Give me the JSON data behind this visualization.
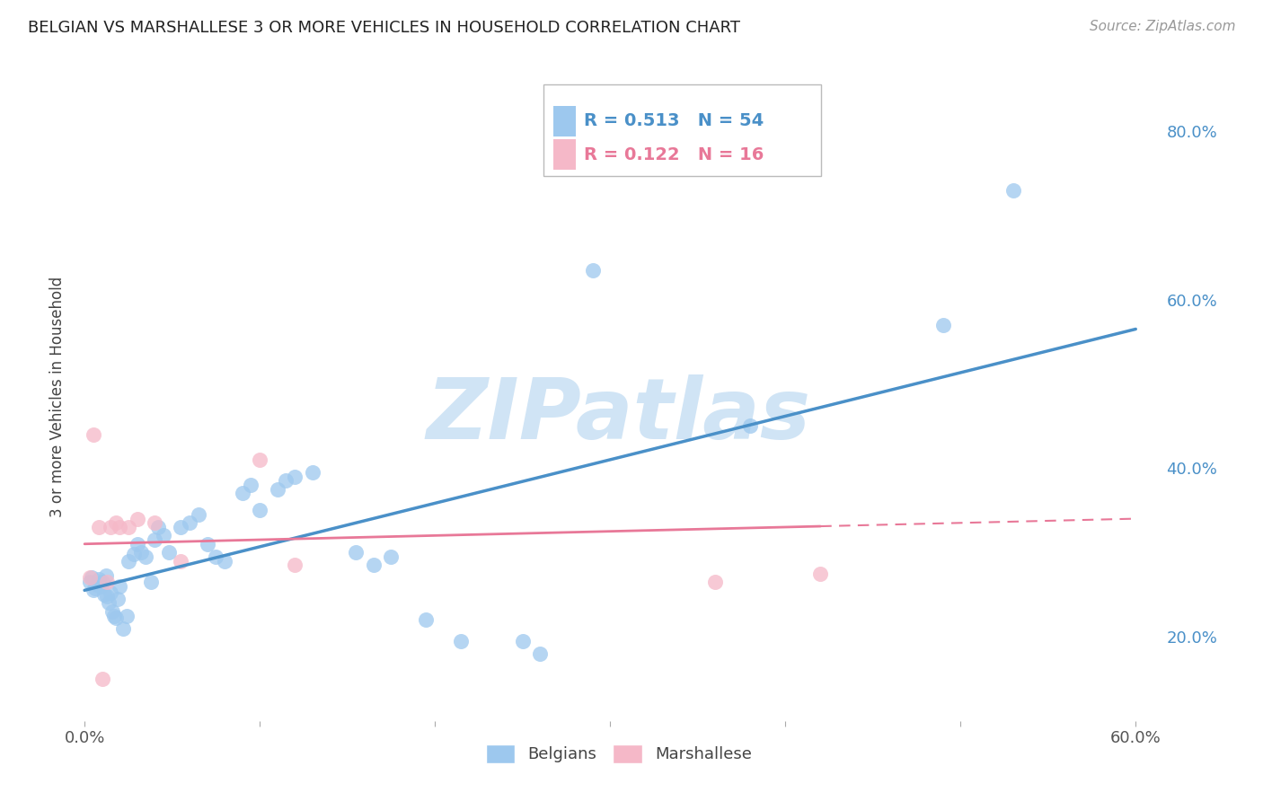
{
  "title": "BELGIAN VS MARSHALLESE 3 OR MORE VEHICLES IN HOUSEHOLD CORRELATION CHART",
  "source": "Source: ZipAtlas.com",
  "ylabel": "3 or more Vehicles in Household",
  "xlim": [
    -0.005,
    0.615
  ],
  "ylim": [
    0.1,
    0.87
  ],
  "xtick_positions": [
    0.0,
    0.1,
    0.2,
    0.3,
    0.4,
    0.5,
    0.6
  ],
  "xticklabels": [
    "0.0%",
    "",
    "",
    "",
    "",
    "",
    "60.0%"
  ],
  "yticks_right": [
    0.2,
    0.4,
    0.6,
    0.8
  ],
  "ytick_right_labels": [
    "20.0%",
    "40.0%",
    "60.0%",
    "80.0%"
  ],
  "belgian_R": 0.513,
  "belgian_N": 54,
  "marshallese_R": 0.122,
  "marshallese_N": 16,
  "belgian_color": "#9DC8EE",
  "marshallese_color": "#F5B8C8",
  "belgian_line_color": "#4A90C8",
  "marshallese_line_color": "#E87898",
  "watermark": "ZIPatlas",
  "watermark_color": "#D0E4F5",
  "belgian_x": [
    0.003,
    0.004,
    0.005,
    0.006,
    0.007,
    0.008,
    0.009,
    0.01,
    0.011,
    0.012,
    0.013,
    0.014,
    0.015,
    0.016,
    0.017,
    0.018,
    0.019,
    0.02,
    0.022,
    0.024,
    0.025,
    0.028,
    0.03,
    0.032,
    0.035,
    0.038,
    0.04,
    0.042,
    0.045,
    0.048,
    0.055,
    0.06,
    0.065,
    0.07,
    0.075,
    0.08,
    0.09,
    0.095,
    0.1,
    0.11,
    0.115,
    0.12,
    0.13,
    0.155,
    0.165,
    0.175,
    0.195,
    0.215,
    0.25,
    0.26,
    0.29,
    0.38,
    0.49,
    0.53
  ],
  "belgian_y": [
    0.265,
    0.27,
    0.255,
    0.258,
    0.262,
    0.268,
    0.26,
    0.265,
    0.25,
    0.272,
    0.248,
    0.24,
    0.252,
    0.23,
    0.225,
    0.222,
    0.245,
    0.26,
    0.21,
    0.225,
    0.29,
    0.298,
    0.31,
    0.3,
    0.295,
    0.265,
    0.315,
    0.33,
    0.32,
    0.3,
    0.33,
    0.335,
    0.345,
    0.31,
    0.295,
    0.29,
    0.37,
    0.38,
    0.35,
    0.375,
    0.385,
    0.39,
    0.395,
    0.3,
    0.285,
    0.295,
    0.22,
    0.195,
    0.195,
    0.18,
    0.635,
    0.45,
    0.57,
    0.73
  ],
  "marshallese_x": [
    0.003,
    0.005,
    0.008,
    0.01,
    0.013,
    0.015,
    0.018,
    0.02,
    0.025,
    0.03,
    0.04,
    0.055,
    0.1,
    0.12,
    0.36,
    0.42
  ],
  "marshallese_y": [
    0.27,
    0.44,
    0.33,
    0.15,
    0.265,
    0.33,
    0.335,
    0.33,
    0.33,
    0.34,
    0.335,
    0.29,
    0.41,
    0.285,
    0.265,
    0.275
  ],
  "belgian_trend_x0": 0.0,
  "belgian_trend_y0": 0.255,
  "belgian_trend_x1": 0.6,
  "belgian_trend_y1": 0.565,
  "marshallese_trend_x0": 0.0,
  "marshallese_trend_y0": 0.31,
  "marshallese_trend_x1": 0.6,
  "marshallese_trend_y1": 0.34
}
